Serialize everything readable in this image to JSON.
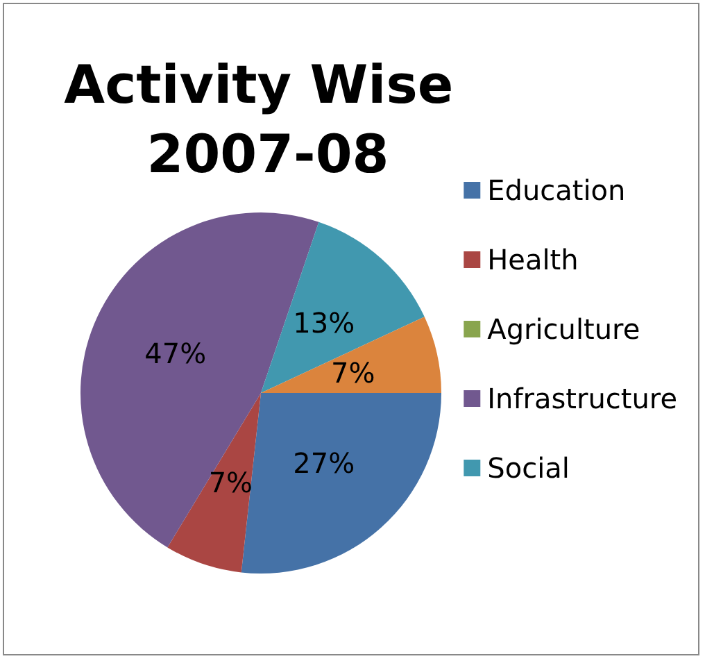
{
  "chart_data": {
    "type": "pie",
    "title": "Activity Wise 2007-08",
    "categories": [
      "Education",
      "Health",
      "Agriculture",
      "Infrastructure",
      "Social",
      null
    ],
    "values": [
      27,
      7,
      0,
      47,
      13,
      7
    ],
    "value_labels": [
      "27%",
      "7%",
      null,
      "47%",
      "13%",
      "7%"
    ],
    "colors": [
      "#4572a7",
      "#aa4643",
      "#89a54e",
      "#71588f",
      "#4198af",
      "#db843d"
    ],
    "legend": "right"
  }
}
